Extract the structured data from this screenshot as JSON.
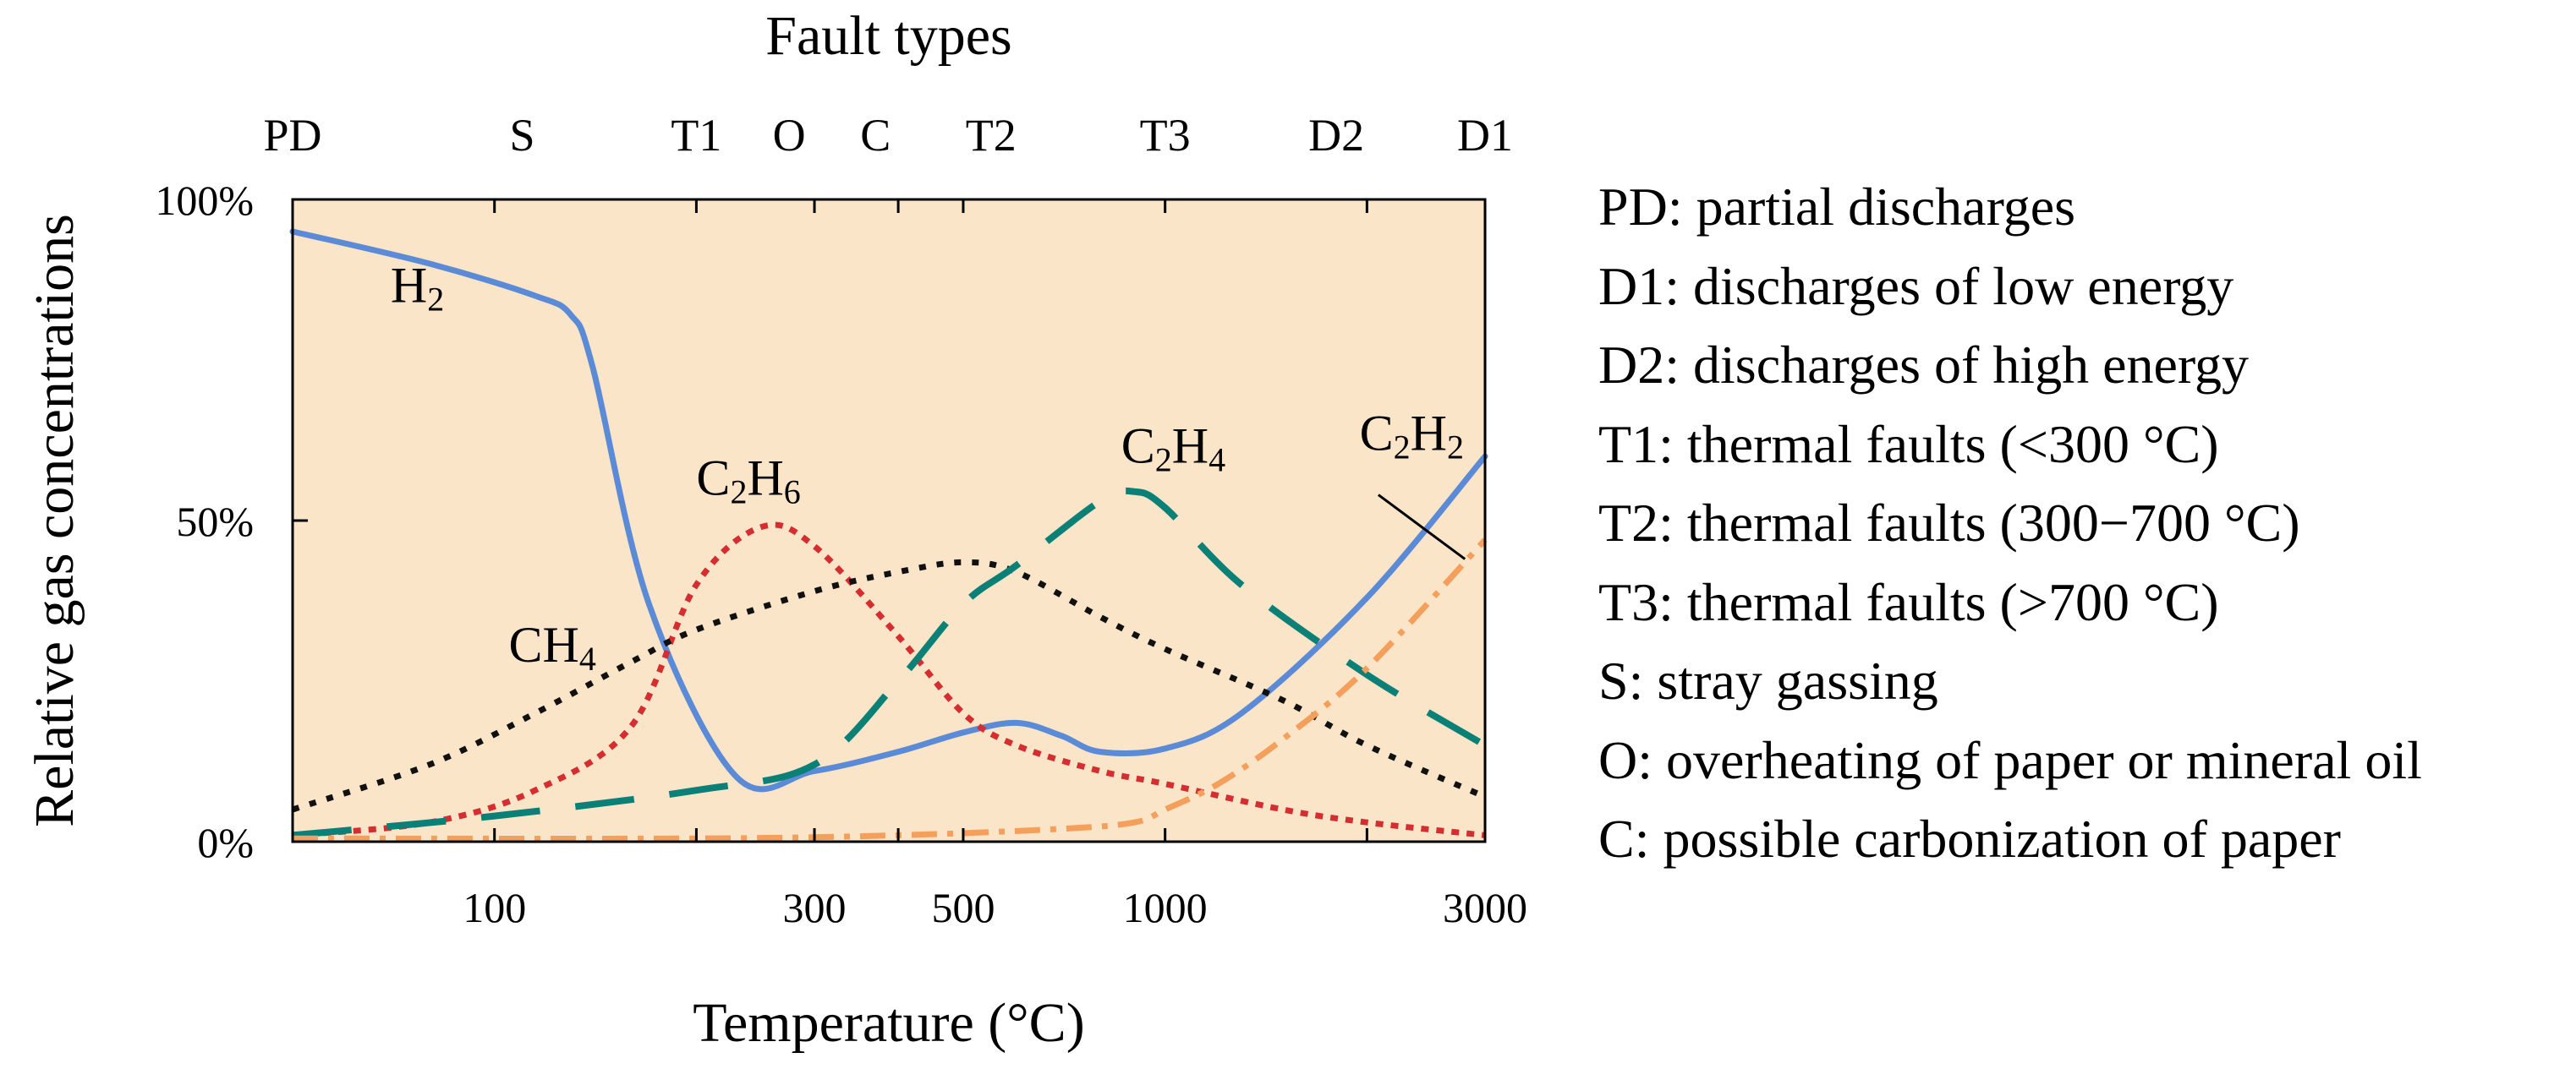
{
  "chart_data": {
    "type": "line",
    "title": "Fault types",
    "xlabel": "Temperature (°C)",
    "ylabel": "Relative gas concentrations",
    "x_scale": "log",
    "xlim": [
      50,
      3000
    ],
    "ylim": [
      0,
      100
    ],
    "x_ticks": [
      {
        "value": 100,
        "label": "100"
      },
      {
        "value": 300,
        "label": "300"
      },
      {
        "value": 500,
        "label": "500"
      },
      {
        "value": 1000,
        "label": "1000"
      },
      {
        "value": 3000,
        "label": "3000"
      }
    ],
    "x_minor_ticks": [
      200,
      400,
      2000
    ],
    "y_ticks": [
      {
        "value": 0,
        "label": "0%"
      },
      {
        "value": 50,
        "label": "50%"
      },
      {
        "value": 100,
        "label": "100%"
      }
    ],
    "fault_types": [
      {
        "label": "PD",
        "x": 50
      },
      {
        "label": "S",
        "x": 110
      },
      {
        "label": "T1",
        "x": 200
      },
      {
        "label": "O",
        "x": 275
      },
      {
        "label": "C",
        "x": 370
      },
      {
        "label": "T2",
        "x": 550
      },
      {
        "label": "T3",
        "x": 1000
      },
      {
        "label": "D2",
        "x": 1800
      },
      {
        "label": "D1",
        "x": 3000
      }
    ],
    "series": [
      {
        "name": "H2",
        "formula": "H",
        "subscript": "2",
        "color": "#5b8bd6",
        "style": "solid",
        "label_at": {
          "x": 70,
          "y": 84
        },
        "x": [
          50,
          80,
          115,
          130,
          140,
          170,
          230,
          300,
          400,
          500,
          600,
          700,
          800,
          1000,
          1300,
          2000,
          3000
        ],
        "y": [
          95,
          90,
          85,
          82,
          74,
          37,
          10,
          11,
          14,
          17,
          18.5,
          16.5,
          14,
          14.5,
          20,
          38,
          60
        ]
      },
      {
        "name": "C2H6",
        "formula": "C",
        "subscript": "2",
        "formula2": "H",
        "subscript2": "6",
        "color": "#d52e30",
        "style": "dotted",
        "label_at": {
          "x": 200,
          "y": 54
        },
        "x": [
          50,
          80,
          115,
          160,
          200,
          250,
          300,
          400,
          500,
          600,
          800,
          1000,
          1500,
          2000,
          3000
        ],
        "y": [
          1,
          3,
          8,
          18,
          40,
          49,
          46,
          32,
          20,
          15,
          11,
          9,
          5,
          3,
          1
        ]
      },
      {
        "name": "CH4",
        "formula": "CH",
        "subscript": "4",
        "color": "#111111",
        "style": "dashed-fine",
        "label_at": {
          "x": 105,
          "y": 28
        },
        "x": [
          50,
          80,
          115,
          160,
          200,
          300,
          400,
          500,
          600,
          800,
          1000,
          1500,
          2000,
          3000
        ],
        "y": [
          5,
          12,
          20,
          28,
          33,
          39,
          42,
          43.5,
          42,
          35,
          30,
          22,
          15,
          7
        ]
      },
      {
        "name": "C2H4",
        "formula": "C",
        "subscript": "2",
        "formula2": "H",
        "subscript2": "4",
        "color": "#0b8077",
        "style": "dashed-long",
        "label_at": {
          "x": 860,
          "y": 59
        },
        "x": [
          50,
          100,
          200,
          300,
          400,
          500,
          600,
          800,
          900,
          1000,
          1300,
          2000,
          3000
        ],
        "y": [
          1,
          4,
          8,
          12,
          25,
          37,
          43,
          53,
          54.5,
          52,
          40,
          26,
          15
        ]
      },
      {
        "name": "C2H2",
        "formula": "C",
        "subscript": "2",
        "formula2": "H",
        "subscript2": "2",
        "color": "#f4a05c",
        "style": "dash-dot",
        "label_at": {
          "x": 1950,
          "y": 61
        },
        "label_pointer": [
          {
            "x": 2080,
            "y": 54
          },
          {
            "x": 2800,
            "y": 44
          }
        ],
        "x": [
          50,
          200,
          400,
          700,
          900,
          1000,
          1200,
          1500,
          2000,
          3000
        ],
        "y": [
          0.5,
          0.5,
          1,
          2,
          3,
          5,
          9,
          16,
          27,
          47
        ]
      }
    ]
  },
  "legend": [
    "PD: partial discharges",
    "D1: discharges of low energy",
    "D2: discharges of high energy",
    "T1: thermal faults (<300 °C)",
    "T2: thermal faults (300−700 °C)",
    "T3: thermal faults (>700 °C)",
    "S: stray gassing",
    "O: overheating of paper or mineral oil",
    "C: possible carbonization of paper"
  ],
  "colors": {
    "plot_background": "#fbe5c8",
    "frame": "#000000"
  }
}
